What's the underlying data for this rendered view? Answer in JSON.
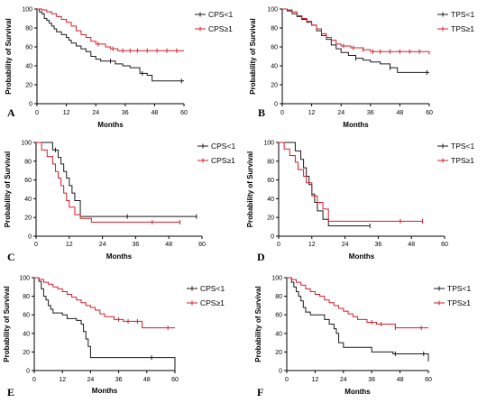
{
  "colors": {
    "low": "#1a1a1a",
    "high": "#d11f2b"
  },
  "chart_data": [
    {
      "type": "line",
      "panel_letter": "A",
      "xlabel": "Months",
      "ylabel": "Probability of Survival",
      "xlim": [
        0,
        60
      ],
      "ylim": [
        0,
        100
      ],
      "xticks": [
        0,
        12,
        24,
        36,
        48,
        60
      ],
      "yticks": [
        0,
        20,
        40,
        60,
        80,
        100
      ],
      "legend_position": "top-right",
      "series": [
        {
          "name": "CPS<1",
          "color": "#1a1a1a",
          "x": [
            0,
            1,
            2,
            3,
            4,
            5,
            6,
            7,
            8,
            10,
            12,
            13,
            14,
            16,
            18,
            20,
            22,
            24,
            26,
            30,
            32,
            35,
            38,
            42,
            45,
            47,
            60
          ],
          "y": [
            100,
            97,
            95,
            90,
            88,
            85,
            82,
            79,
            76,
            73,
            70,
            67,
            64,
            61,
            58,
            55,
            50,
            47,
            45,
            45,
            42,
            40,
            38,
            32,
            30,
            24,
            24
          ],
          "censor_x": [
            30,
            43,
            59
          ]
        },
        {
          "name": "CPS≥1",
          "color": "#d11f2b",
          "x": [
            0,
            2,
            4,
            6,
            8,
            10,
            12,
            14,
            16,
            18,
            20,
            22,
            24,
            28,
            30,
            33,
            60
          ],
          "y": [
            100,
            99,
            97,
            95,
            92,
            89,
            86,
            82,
            77,
            73,
            70,
            66,
            63,
            60,
            58,
            56,
            56
          ],
          "censor_x": [
            25,
            31,
            35,
            38,
            41,
            45,
            49,
            53,
            57
          ]
        }
      ]
    },
    {
      "type": "line",
      "panel_letter": "B",
      "xlabel": "Months",
      "ylabel": "Probability of Survival",
      "xlim": [
        0,
        60
      ],
      "ylim": [
        0,
        100
      ],
      "xticks": [
        0,
        12,
        24,
        36,
        48,
        60
      ],
      "yticks": [
        0,
        20,
        40,
        60,
        80,
        100
      ],
      "legend_position": "top-right",
      "series": [
        {
          "name": "TPS<1",
          "color": "#1a1a1a",
          "x": [
            0,
            2,
            4,
            6,
            8,
            10,
            12,
            14,
            16,
            18,
            20,
            22,
            24,
            27,
            30,
            33,
            36,
            40,
            44,
            47,
            60
          ],
          "y": [
            100,
            98,
            95,
            92,
            89,
            86,
            83,
            77,
            72,
            68,
            62,
            58,
            54,
            51,
            48,
            46,
            44,
            42,
            38,
            33,
            33
          ],
          "censor_x": [
            30,
            44,
            59
          ]
        },
        {
          "name": "TPS≥1",
          "color": "#d11f2b",
          "x": [
            0,
            2,
            4,
            6,
            8,
            10,
            12,
            14,
            16,
            18,
            20,
            22,
            24,
            28,
            33,
            36,
            58,
            60
          ],
          "y": [
            100,
            99,
            97,
            93,
            90,
            87,
            83,
            79,
            74,
            70,
            67,
            63,
            61,
            59,
            57,
            55,
            55,
            52
          ],
          "censor_x": [
            25,
            29,
            33,
            37,
            40,
            44,
            48,
            52,
            56
          ]
        }
      ]
    },
    {
      "type": "line",
      "panel_letter": "C",
      "xlabel": "Months",
      "ylabel": "Probability of Survival",
      "xlim": [
        0,
        60
      ],
      "ylim": [
        0,
        100
      ],
      "xticks": [
        0,
        12,
        24,
        36,
        48,
        60
      ],
      "yticks": [
        0,
        20,
        40,
        60,
        80,
        100
      ],
      "legend_position": "top-right",
      "series": [
        {
          "name": "CPS<1",
          "color": "#1a1a1a",
          "x": [
            0,
            3,
            6,
            8,
            9,
            10,
            11,
            12,
            13,
            14,
            16,
            58
          ],
          "y": [
            100,
            100,
            92,
            84,
            77,
            69,
            62,
            54,
            46,
            38,
            21,
            21
          ],
          "censor_x": [
            7,
            33,
            58
          ]
        },
        {
          "name": "CPS≥1",
          "color": "#d11f2b",
          "x": [
            0,
            2,
            4,
            6,
            7,
            8,
            9,
            10,
            11,
            12,
            14,
            16,
            20,
            52
          ],
          "y": [
            100,
            92,
            85,
            77,
            69,
            62,
            54,
            46,
            38,
            31,
            23,
            19,
            15,
            15
          ],
          "censor_x": [
            42,
            52
          ]
        }
      ]
    },
    {
      "type": "line",
      "panel_letter": "D",
      "xlabel": "Months",
      "ylabel": "Probability of Survival",
      "xlim": [
        0,
        60
      ],
      "ylim": [
        0,
        100
      ],
      "xticks": [
        0,
        12,
        24,
        36,
        48,
        60
      ],
      "yticks": [
        0,
        20,
        40,
        60,
        80,
        100
      ],
      "legend_position": "top-right",
      "series": [
        {
          "name": "TPS<1",
          "color": "#1a1a1a",
          "x": [
            0,
            3,
            6,
            8,
            9,
            10,
            11,
            12,
            13,
            14,
            16,
            18,
            33
          ],
          "y": [
            100,
            100,
            91,
            82,
            73,
            64,
            55,
            45,
            36,
            27,
            18,
            11,
            11
          ],
          "censor_x": [
            33
          ]
        },
        {
          "name": "TPS≥1",
          "color": "#d11f2b",
          "x": [
            0,
            2,
            4,
            6,
            7,
            9,
            10,
            12,
            14,
            16,
            18,
            52
          ],
          "y": [
            100,
            93,
            86,
            79,
            71,
            64,
            57,
            43,
            36,
            29,
            16,
            16
          ],
          "censor_x": [
            44,
            52
          ]
        }
      ]
    },
    {
      "type": "line",
      "panel_letter": "E",
      "xlabel": "Months",
      "ylabel": "Probability of Survival",
      "xlim": [
        0,
        60
      ],
      "ylim": [
        0,
        100
      ],
      "xticks": [
        0,
        12,
        24,
        36,
        48,
        60
      ],
      "yticks": [
        0,
        20,
        40,
        60,
        80,
        100
      ],
      "legend_position": "top-right",
      "series": [
        {
          "name": "CPS<1",
          "color": "#1a1a1a",
          "x": [
            0,
            2,
            3,
            4,
            5,
            6,
            7,
            8,
            12,
            14,
            18,
            20,
            21,
            22,
            23,
            24,
            59,
            60
          ],
          "y": [
            100,
            96,
            88,
            80,
            76,
            70,
            66,
            62,
            60,
            56,
            54,
            50,
            42,
            34,
            26,
            14,
            14,
            0
          ],
          "censor_x": [
            50
          ]
        },
        {
          "name": "CPS≥1",
          "color": "#d11f2b",
          "x": [
            0,
            2,
            4,
            6,
            8,
            10,
            12,
            14,
            16,
            18,
            20,
            22,
            24,
            26,
            28,
            30,
            34,
            38,
            44,
            46,
            60
          ],
          "y": [
            100,
            98,
            95,
            93,
            90,
            88,
            85,
            82,
            79,
            76,
            73,
            70,
            68,
            65,
            61,
            58,
            55,
            53,
            53,
            46,
            46
          ],
          "censor_x": [
            36,
            40,
            44,
            57
          ]
        }
      ]
    },
    {
      "type": "line",
      "panel_letter": "F",
      "xlabel": "Months",
      "ylabel": "Probability of Survival",
      "xlim": [
        0,
        60
      ],
      "ylim": [
        0,
        100
      ],
      "xticks": [
        0,
        12,
        24,
        36,
        48,
        60
      ],
      "yticks": [
        0,
        20,
        40,
        60,
        80,
        100
      ],
      "legend_position": "top-right",
      "series": [
        {
          "name": "TPS<1",
          "color": "#1a1a1a",
          "x": [
            0,
            2,
            3,
            4,
            5,
            6,
            7,
            8,
            10,
            14,
            16,
            18,
            20,
            21,
            22,
            24,
            34,
            36,
            45,
            58,
            60
          ],
          "y": [
            100,
            95,
            90,
            85,
            80,
            75,
            68,
            63,
            60,
            60,
            55,
            50,
            45,
            40,
            30,
            25,
            25,
            20,
            18,
            18,
            10
          ],
          "censor_x": [
            46,
            58
          ]
        },
        {
          "name": "TPS≥1",
          "color": "#d11f2b",
          "x": [
            0,
            2,
            4,
            6,
            8,
            10,
            12,
            14,
            16,
            18,
            20,
            22,
            24,
            26,
            28,
            30,
            34,
            38,
            46,
            60
          ],
          "y": [
            100,
            98,
            95,
            92,
            88,
            85,
            82,
            80,
            76,
            73,
            70,
            67,
            64,
            61,
            58,
            55,
            52,
            50,
            46,
            46
          ],
          "censor_x": [
            36,
            40,
            46,
            57
          ]
        }
      ]
    }
  ]
}
